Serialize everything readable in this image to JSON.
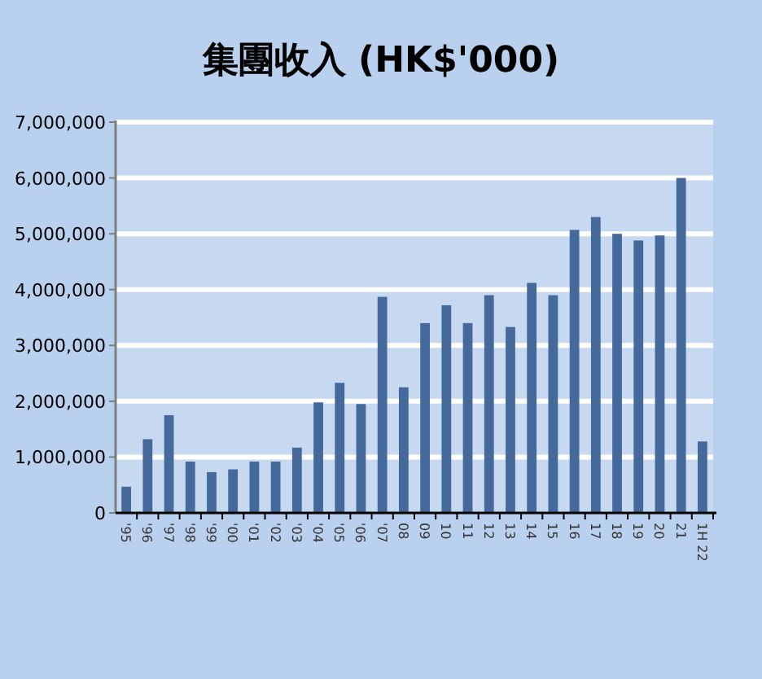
{
  "chart_data": {
    "type": "bar",
    "title": "集團收入 (HK$'000)",
    "categories": [
      "'95",
      "'96",
      "'97",
      "'98",
      "'99",
      "'00",
      "'01",
      "'02",
      "'03",
      "'04",
      "'05",
      "'06",
      "'07",
      "08",
      "09",
      "10",
      "11",
      "12",
      "13",
      "14",
      "15",
      "16",
      "17",
      "18",
      "19",
      "20",
      "21",
      "1H 22"
    ],
    "values": [
      470000,
      1320000,
      1750000,
      920000,
      730000,
      780000,
      920000,
      920000,
      1170000,
      1980000,
      2330000,
      1950000,
      3870000,
      2250000,
      3400000,
      3720000,
      3400000,
      3900000,
      3330000,
      4120000,
      3900000,
      5070000,
      5300000,
      5000000,
      4880000,
      4970000,
      6000000,
      1280000
    ],
    "color": "#46699b",
    "ylim": [
      0,
      7000000
    ],
    "yticks": [
      0,
      {
        "value": 1000000,
        "label": "1,000,000"
      },
      {
        "value": 2000000,
        "label": "2,000,000"
      },
      {
        "value": 3000000,
        "label": "3,000,000"
      },
      {
        "value": 4000000,
        "label": "4,000,000"
      },
      {
        "value": 5000000,
        "label": "5,000,000"
      },
      {
        "value": 6000000,
        "label": "6,000,000"
      },
      {
        "value": 7000000,
        "label": "7,000,000"
      }
    ],
    "grid": "y"
  }
}
